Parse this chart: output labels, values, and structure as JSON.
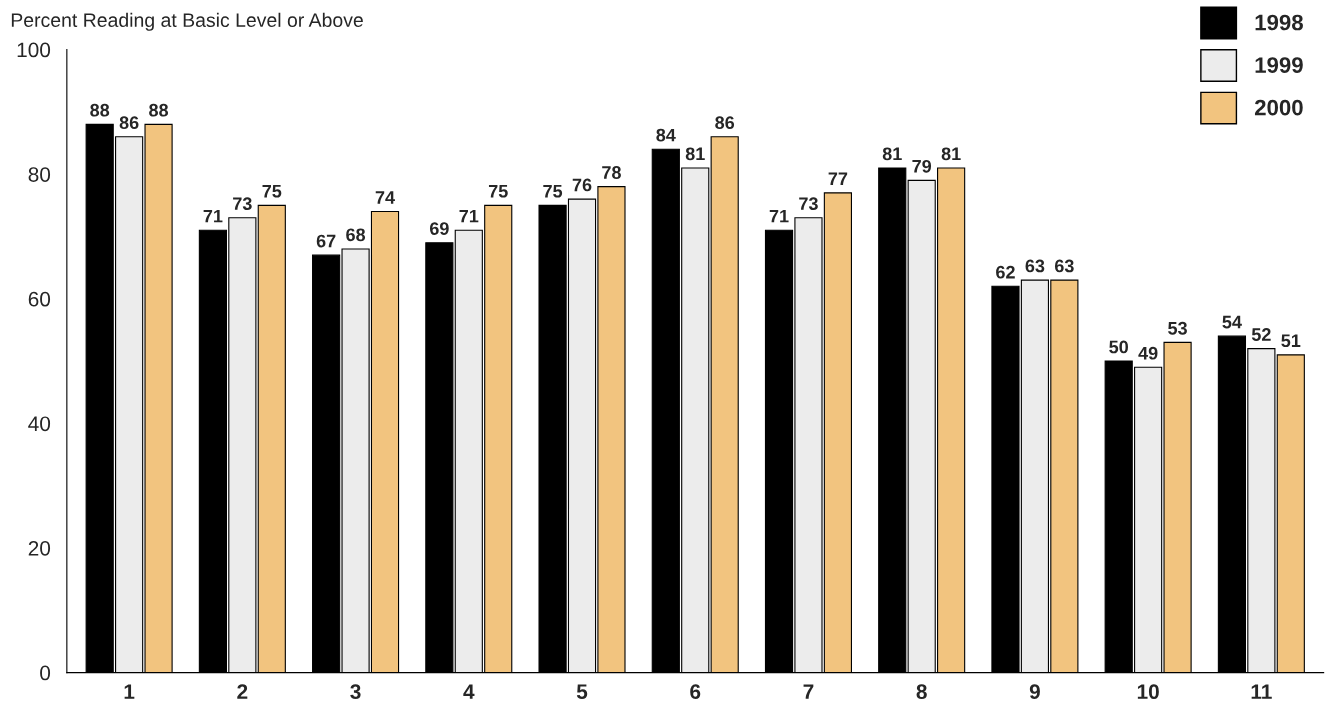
{
  "chart_data": {
    "type": "bar",
    "ylabel": "Percent Reading at Basic Level or Above",
    "categories": [
      "1",
      "2",
      "3",
      "4",
      "5",
      "6",
      "7",
      "8",
      "9",
      "10",
      "11"
    ],
    "series": [
      {
        "name": "1998",
        "color": "#000000",
        "values": [
          88,
          71,
          67,
          69,
          75,
          84,
          71,
          81,
          62,
          50,
          54
        ]
      },
      {
        "name": "1999",
        "color": "#ececec",
        "values": [
          86,
          73,
          68,
          71,
          76,
          81,
          73,
          79,
          63,
          49,
          52
        ]
      },
      {
        "name": "2000",
        "color": "#f2c47f",
        "values": [
          88,
          75,
          74,
          75,
          78,
          86,
          77,
          81,
          63,
          53,
          51
        ]
      }
    ],
    "ylim": [
      0,
      100
    ],
    "yticks": [
      0,
      20,
      40,
      60,
      80,
      100
    ],
    "data_labels": true,
    "legend": "top right",
    "grid": false
  }
}
